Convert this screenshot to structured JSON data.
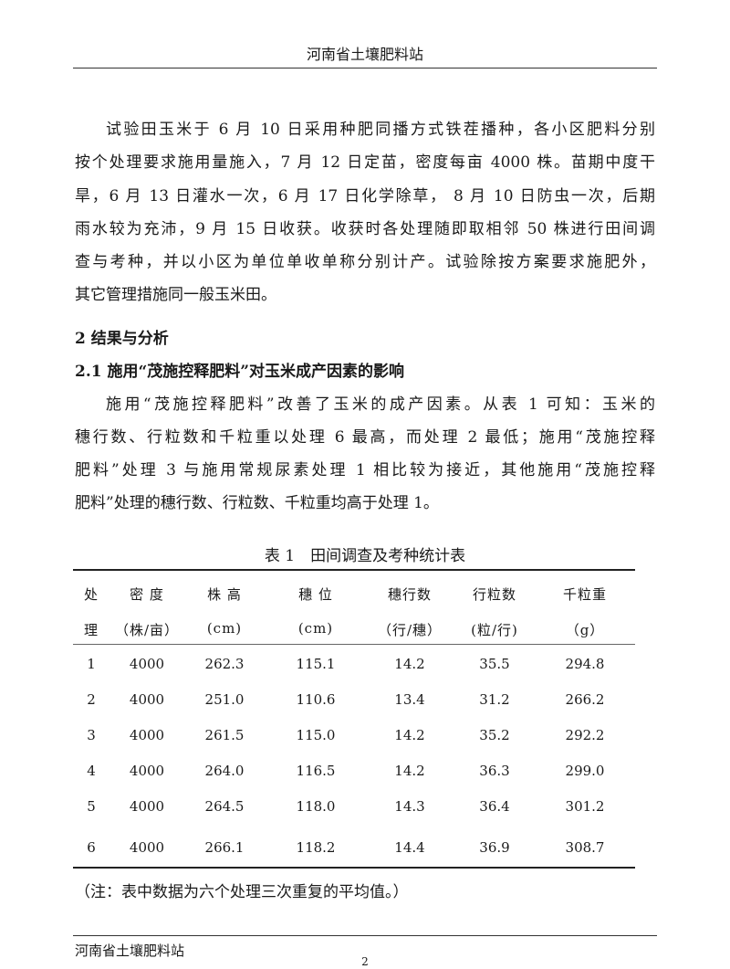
{
  "header": {
    "title": "河南省土壤肥料站"
  },
  "paragraph1": [
    "试验田玉米于 6 月 10 日采用种肥同播方式铁茬播种，各小区肥料分别",
    "按个处理要求施用量施入，7 月 12 日定苗，密度每亩 4000 株。苗期中度干",
    "旱，6 月 13 日灌水一次，6 月 17 日化学除草， 8 月 10 日防虫一次，后期",
    "雨水较为充沛，9 月 15 日收获。收获时各处理随即取相邻 50 株进行田间调",
    "查与考种，并以小区为单位单收单称分别计产。试验除按方案要求施肥外，",
    "其它管理措施同一般玉米田。"
  ],
  "section_heading": "2 结果与分析",
  "subsection_heading": "2.1 施用“茂施控释肥料”对玉米成产因素的影响",
  "paragraph2": [
    "施用“茂施控释肥料”改善了玉米的成产因素。从表 1 可知：玉米的",
    "穗行数、行粒数和千粒重以处理 6 最高，而处理 2 最低；施用“茂施控释",
    "肥料”处理 3 与施用常规尿素处理 1 相比较为接近，其他施用“茂施控释",
    "肥料”处理的穗行数、行粒数、千粒重均高于处理 1。"
  ],
  "table": {
    "caption": "表 1　田间调查及考种统计表",
    "header_row1": [
      "处",
      "密 度",
      "株 高",
      "穗 位",
      "穗行数",
      "行粒数",
      "千粒重"
    ],
    "header_row2": [
      "理",
      "（株/亩）",
      "(cm)",
      "(cm)",
      "（行/穗）",
      "(粒/行)",
      "（g）"
    ],
    "rows": [
      [
        "1",
        "4000",
        "262.3",
        "115.1",
        "14.2",
        "35.5",
        "294.8"
      ],
      [
        "2",
        "4000",
        "251.0",
        "110.6",
        "13.4",
        "31.2",
        "266.2"
      ],
      [
        "3",
        "4000",
        "261.5",
        "115.0",
        "14.2",
        "35.2",
        "292.2"
      ],
      [
        "4",
        "4000",
        "264.0",
        "116.5",
        "14.2",
        "36.3",
        "299.0"
      ],
      [
        "5",
        "4000",
        "264.5",
        "118.0",
        "14.3",
        "36.4",
        "301.2"
      ],
      [
        "6",
        "4000",
        "266.1",
        "118.2",
        "14.4",
        "36.9",
        "308.7"
      ]
    ],
    "note": "（注：表中数据为六个处理三次重复的平均值。）"
  },
  "footer": {
    "org": "河南省土壤肥料站",
    "page_number": "2"
  }
}
